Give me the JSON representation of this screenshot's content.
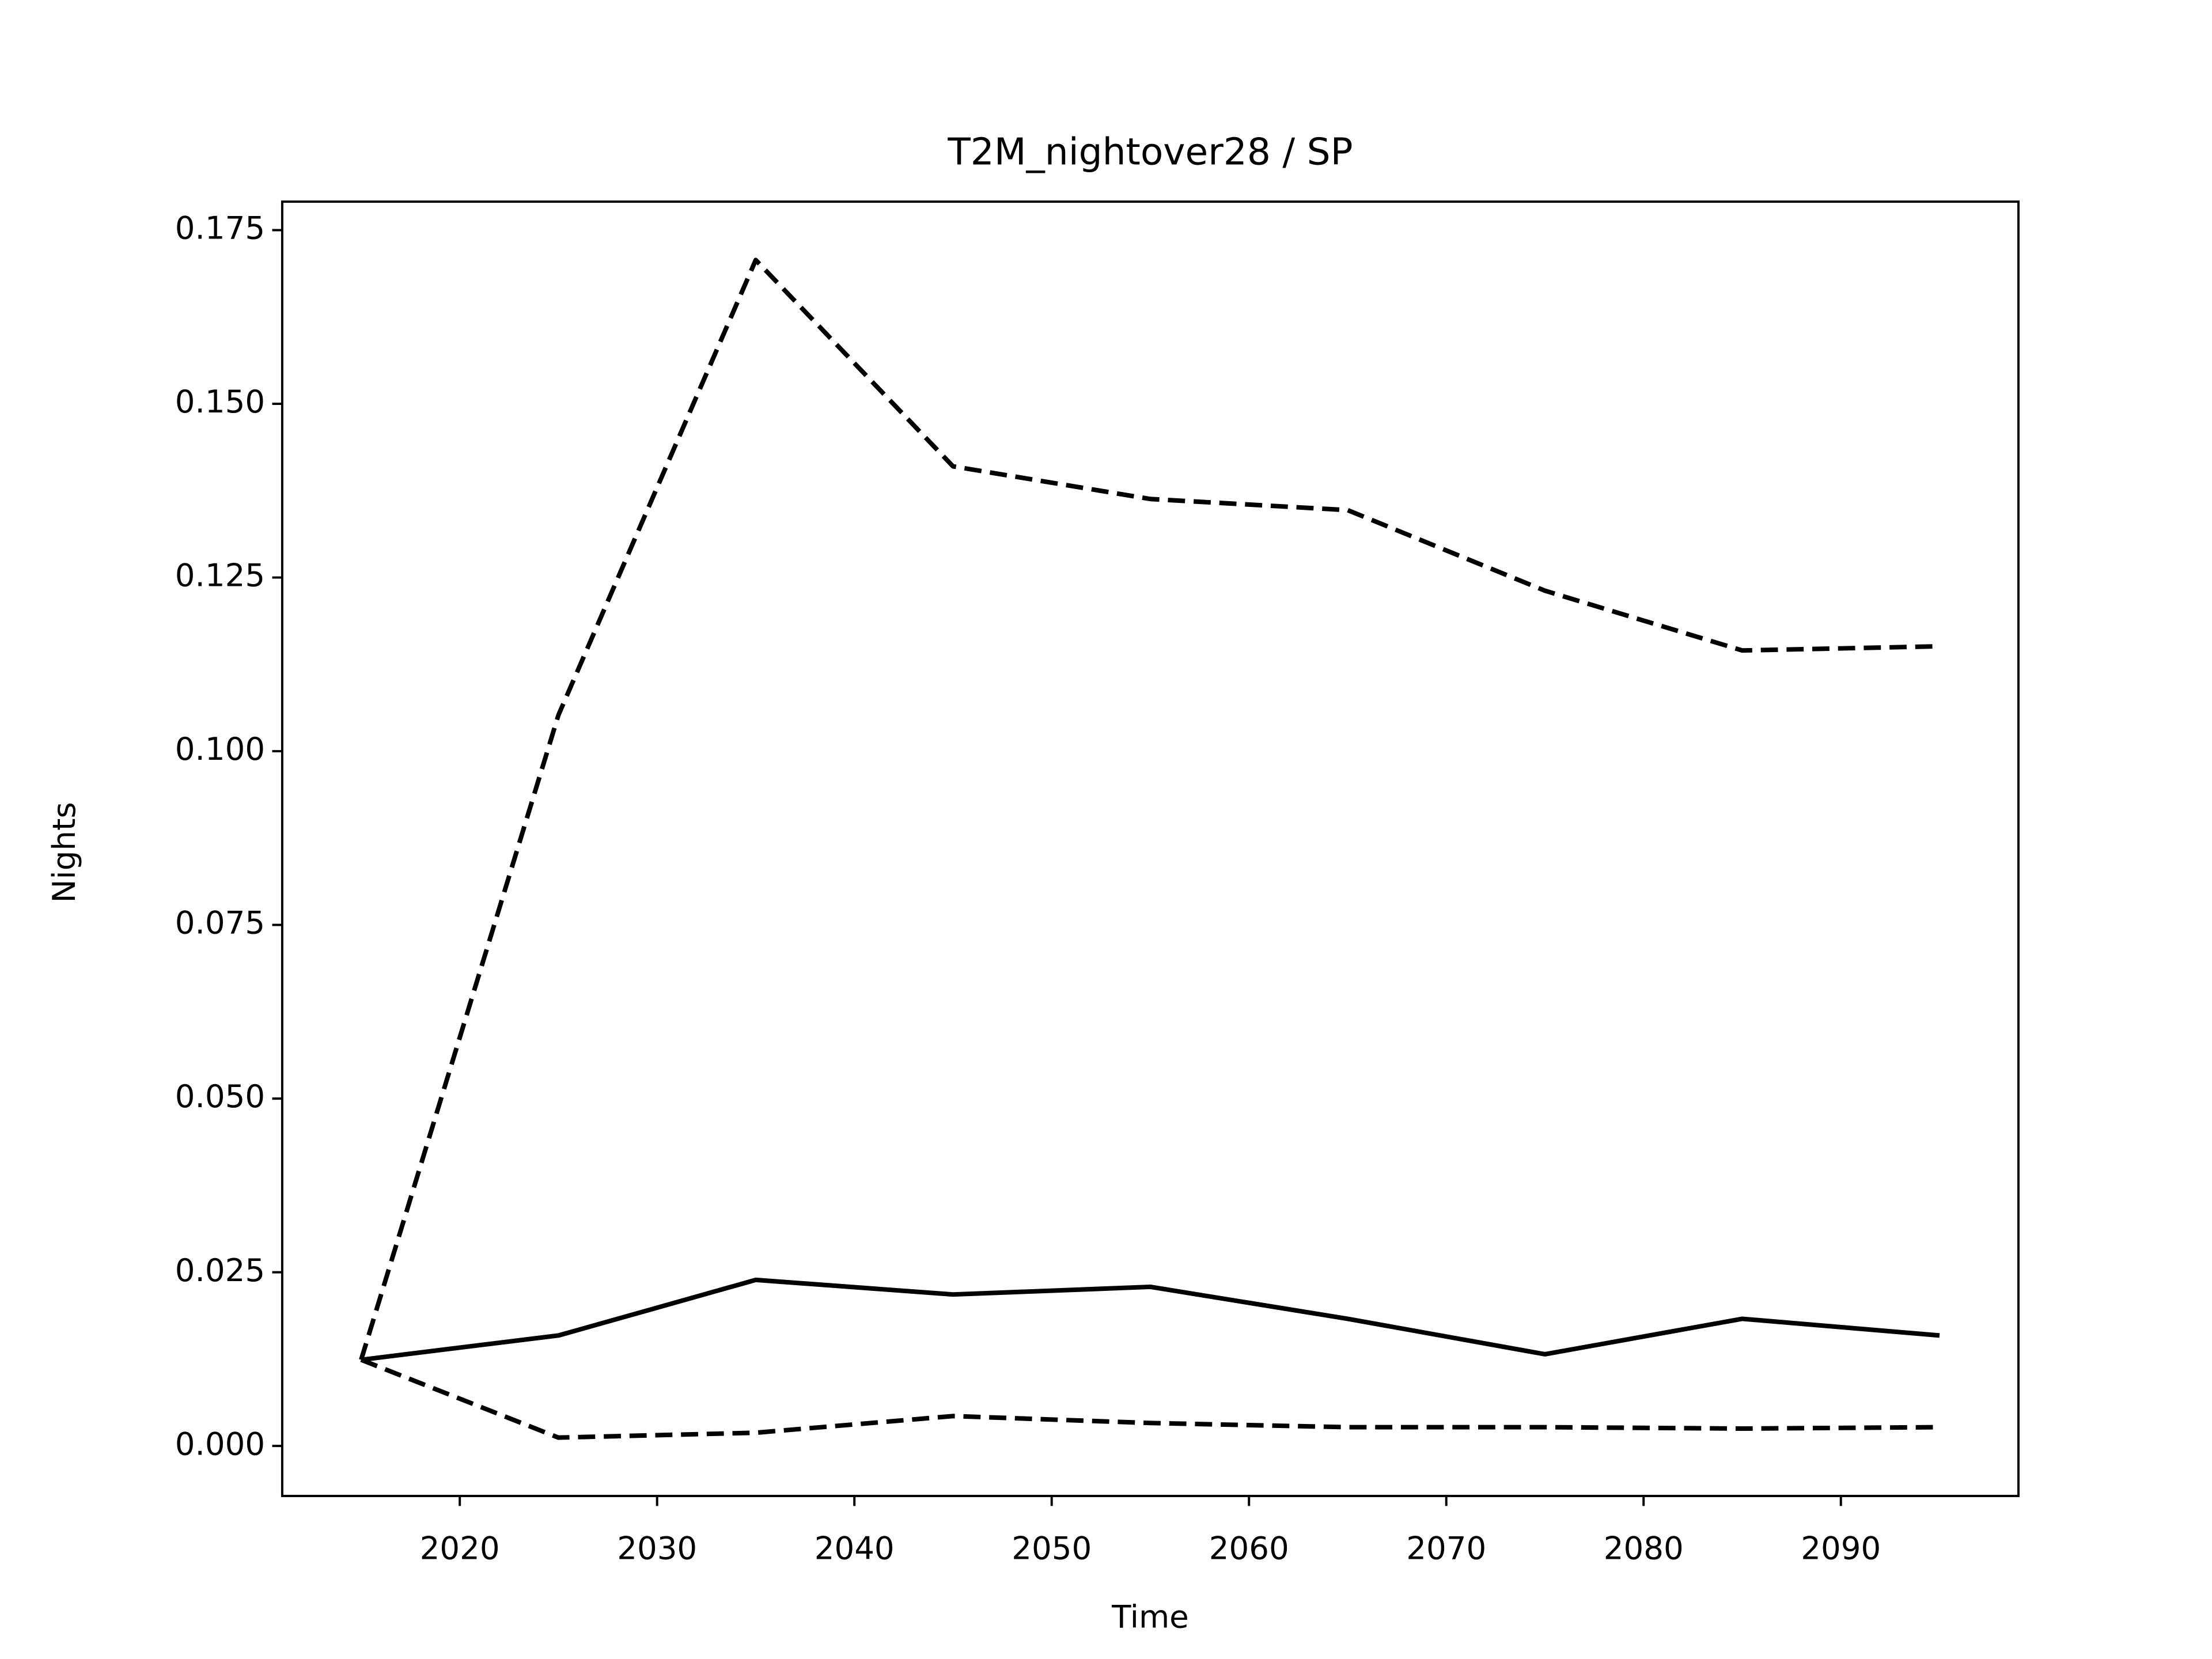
{
  "chart_data": {
    "type": "line",
    "title": "T2M_nightover28 / SP",
    "xlabel": "Time",
    "ylabel": "Nights",
    "x": [
      2015,
      2025,
      2035,
      2045,
      2055,
      2065,
      2075,
      2085,
      2095
    ],
    "series": [
      {
        "color": "#000000",
        "linestyle": "solid",
        "values": [
          0.0124,
          0.0159,
          0.0239,
          0.0218,
          0.0229,
          0.0183,
          0.0132,
          0.0183,
          0.0159
        ]
      },
      {
        "color": "#000000",
        "linestyle": "dashed",
        "values": [
          0.0124,
          0.1052,
          0.1707,
          0.141,
          0.1363,
          0.1347,
          0.1231,
          0.1145,
          0.1151
        ]
      },
      {
        "color": "#000000",
        "linestyle": "dashed",
        "values": [
          0.0124,
          0.0012,
          0.0019,
          0.0043,
          0.0033,
          0.0027,
          0.0027,
          0.0025,
          0.0027
        ]
      }
    ],
    "xlim": [
      2011,
      2099
    ],
    "xticks": [
      2020,
      2030,
      2040,
      2050,
      2060,
      2070,
      2080,
      2090
    ],
    "ylim": [
      -0.0072,
      0.1791
    ],
    "yticks": [
      {
        "value": 0,
        "label": "0.000"
      },
      {
        "value": 0.025,
        "label": "0.025"
      },
      {
        "value": 0.05,
        "label": "0.050"
      },
      {
        "value": 0.075,
        "label": "0.075"
      },
      {
        "value": 0.1,
        "label": "0.100"
      },
      {
        "value": 0.125,
        "label": "0.125"
      },
      {
        "value": 0.15,
        "label": "0.150"
      },
      {
        "value": 0.175,
        "label": "0.175"
      }
    ],
    "grid": false
  }
}
